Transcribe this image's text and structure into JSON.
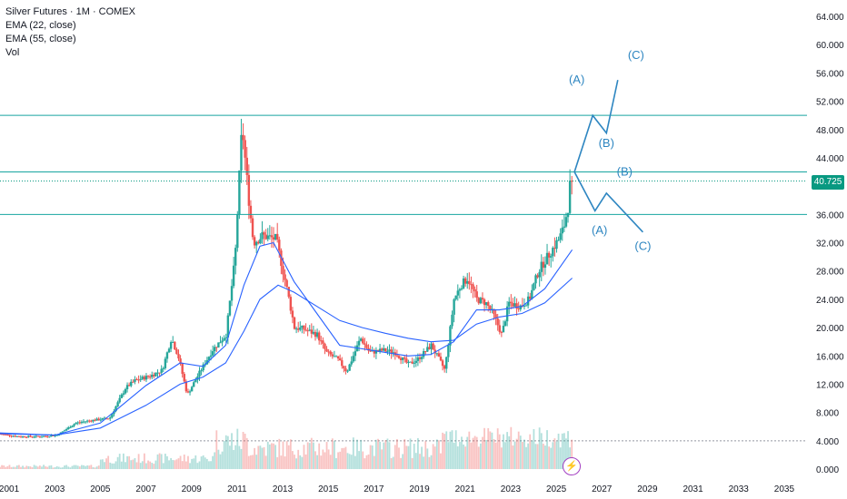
{
  "legend": {
    "title": "Silver Futures · 1M · COMEX",
    "ema22": "EMA (22, close)",
    "ema55": "EMA (55, close)",
    "vol": "Vol"
  },
  "last_price": "40.725",
  "colors": {
    "up": "#26a69a",
    "down": "#ef5350",
    "ema22": "#2962ff",
    "ema55": "#2962ff",
    "level_line": "#17a5a0",
    "wave": "#2e86c1",
    "badge": "#089981"
  },
  "chart_data": {
    "type": "candlestick",
    "title": "Silver Futures · 1M · COMEX",
    "x_ticks": [
      "2001",
      "2003",
      "2005",
      "2007",
      "2009",
      "2011",
      "2013",
      "2015",
      "2017",
      "2019",
      "2021",
      "2023",
      "2025",
      "2027",
      "2029",
      "2031",
      "2033",
      "2035"
    ],
    "y_ticks": [
      "0.000",
      "4.000",
      "8.000",
      "12.000",
      "16.000",
      "20.000",
      "24.000",
      "28.000",
      "32.000",
      "36.000",
      "40.000",
      "44.000",
      "48.000",
      "52.000",
      "56.000",
      "60.000",
      "64.000"
    ],
    "y_range": [
      0,
      64
    ],
    "x_range": [
      2000.6,
      2036.0
    ],
    "price_anchor_path": [
      [
        2000.6,
        5.0
      ],
      [
        2001.5,
        4.6
      ],
      [
        2002.5,
        4.6
      ],
      [
        2003.2,
        4.8
      ],
      [
        2004.0,
        6.5
      ],
      [
        2004.5,
        6.8
      ],
      [
        2005.5,
        7.2
      ],
      [
        2006.2,
        11.5
      ],
      [
        2006.6,
        12.5
      ],
      [
        2007.3,
        13.2
      ],
      [
        2007.8,
        14.0
      ],
      [
        2008.2,
        18.5
      ],
      [
        2008.5,
        16.0
      ],
      [
        2008.9,
        10.5
      ],
      [
        2009.5,
        14.0
      ],
      [
        2010.0,
        16.8
      ],
      [
        2010.6,
        19.0
      ],
      [
        2011.0,
        30.0
      ],
      [
        2011.3,
        48.6
      ],
      [
        2011.6,
        38.0
      ],
      [
        2011.8,
        32.0
      ],
      [
        2012.2,
        33.0
      ],
      [
        2012.8,
        32.5
      ],
      [
        2013.3,
        25.0
      ],
      [
        2013.6,
        20.0
      ],
      [
        2014.0,
        19.8
      ],
      [
        2014.6,
        19.0
      ],
      [
        2015.0,
        16.5
      ],
      [
        2015.5,
        15.5
      ],
      [
        2015.9,
        13.8
      ],
      [
        2016.5,
        18.5
      ],
      [
        2016.9,
        16.5
      ],
      [
        2017.5,
        16.8
      ],
      [
        2018.0,
        16.5
      ],
      [
        2018.6,
        14.8
      ],
      [
        2019.0,
        15.5
      ],
      [
        2019.6,
        17.5
      ],
      [
        2020.2,
        14.0
      ],
      [
        2020.6,
        24.0
      ],
      [
        2020.9,
        26.0
      ],
      [
        2021.2,
        27.0
      ],
      [
        2021.6,
        24.0
      ],
      [
        2022.0,
        23.5
      ],
      [
        2022.3,
        22.0
      ],
      [
        2022.7,
        19.0
      ],
      [
        2023.0,
        23.5
      ],
      [
        2023.5,
        23.0
      ],
      [
        2023.9,
        24.0
      ],
      [
        2024.3,
        28.0
      ],
      [
        2024.6,
        29.5
      ],
      [
        2024.9,
        31.0
      ],
      [
        2025.2,
        32.5
      ],
      [
        2025.4,
        34.0
      ],
      [
        2025.6,
        37.0
      ],
      [
        2025.7,
        40.725
      ]
    ],
    "ema22_path": [
      [
        2000.6,
        5.1
      ],
      [
        2003.0,
        4.8
      ],
      [
        2005.0,
        6.5
      ],
      [
        2007.0,
        11.8
      ],
      [
        2008.5,
        15.0
      ],
      [
        2009.5,
        14.5
      ],
      [
        2010.5,
        17.5
      ],
      [
        2011.3,
        26.0
      ],
      [
        2012.0,
        31.5
      ],
      [
        2012.6,
        32.0
      ],
      [
        2013.5,
        26.5
      ],
      [
        2014.5,
        22.0
      ],
      [
        2015.5,
        17.5
      ],
      [
        2016.5,
        17.0
      ],
      [
        2017.5,
        16.5
      ],
      [
        2018.5,
        16.0
      ],
      [
        2019.5,
        16.2
      ],
      [
        2020.5,
        18.0
      ],
      [
        2021.5,
        22.5
      ],
      [
        2022.5,
        22.5
      ],
      [
        2023.5,
        23.0
      ],
      [
        2024.5,
        25.5
      ],
      [
        2025.7,
        31.0
      ]
    ],
    "ema55_path": [
      [
        2000.6,
        5.0
      ],
      [
        2003.0,
        4.8
      ],
      [
        2005.0,
        5.8
      ],
      [
        2007.0,
        9.0
      ],
      [
        2008.5,
        12.0
      ],
      [
        2009.5,
        13.0
      ],
      [
        2010.5,
        15.0
      ],
      [
        2011.3,
        19.5
      ],
      [
        2012.0,
        24.0
      ],
      [
        2012.8,
        26.0
      ],
      [
        2013.5,
        25.0
      ],
      [
        2014.5,
        23.0
      ],
      [
        2015.5,
        21.0
      ],
      [
        2016.5,
        20.0
      ],
      [
        2017.5,
        19.2
      ],
      [
        2018.5,
        18.5
      ],
      [
        2019.5,
        18.0
      ],
      [
        2020.5,
        18.2
      ],
      [
        2021.5,
        20.5
      ],
      [
        2022.5,
        21.5
      ],
      [
        2023.5,
        22.0
      ],
      [
        2024.5,
        23.5
      ],
      [
        2025.7,
        27.0
      ]
    ],
    "horizontal_levels": [
      50.0,
      42.0,
      36.0
    ],
    "last_price_line": 40.725,
    "annotations": [
      {
        "label": "(A)",
        "x": 2025.9,
        "y": 54.5
      },
      {
        "label": "(B)",
        "x": 2027.2,
        "y": 45.5
      },
      {
        "label": "(C)",
        "x": 2028.5,
        "y": 58.0
      },
      {
        "label": "(B)",
        "x": 2028.0,
        "y": 41.5
      },
      {
        "label": "(A)",
        "x": 2026.9,
        "y": 33.2
      },
      {
        "label": "(C)",
        "x": 2028.8,
        "y": 31.0
      }
    ],
    "bullish_wave": [
      [
        2025.8,
        42.0
      ],
      [
        2026.6,
        50.0
      ],
      [
        2027.2,
        47.5
      ],
      [
        2027.7,
        55.0
      ]
    ],
    "bearish_wave": [
      [
        2025.8,
        42.0
      ],
      [
        2026.7,
        36.5
      ],
      [
        2027.2,
        39.0
      ],
      [
        2028.8,
        33.5
      ]
    ]
  }
}
